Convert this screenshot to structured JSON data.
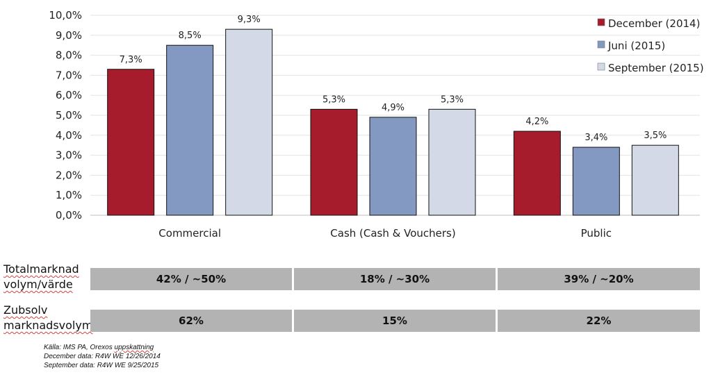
{
  "chart_data": {
    "type": "bar",
    "categories": [
      "Commercial",
      "Cash (Cash & Vouchers)",
      "Public"
    ],
    "series": [
      {
        "name": "December (2014)",
        "values": [
          7.3,
          5.3,
          4.2
        ],
        "labels": [
          "7,3%",
          "5,3%",
          "4,2%"
        ],
        "color": "#a61c2c"
      },
      {
        "name": "Juni (2015)",
        "values": [
          8.5,
          4.9,
          3.4
        ],
        "labels": [
          "8,5%",
          "4,9%",
          "3,4%"
        ],
        "color": "#8499c1"
      },
      {
        "name": "September (2015)",
        "values": [
          9.3,
          5.3,
          3.5
        ],
        "labels": [
          "9,3%",
          "5,3%",
          "3,5%"
        ],
        "color": "#d4d9e8"
      }
    ],
    "yticks": [
      "0,0%",
      "1,0%",
      "2,0%",
      "3,0%",
      "4,0%",
      "5,0%",
      "6,0%",
      "7,0%",
      "8,0%",
      "9,0%",
      "10,0%"
    ],
    "ylim": [
      0,
      10
    ],
    "legend_position": "top-right",
    "grid": true
  },
  "table": {
    "rows": [
      {
        "label_line1": "Totalmarknad",
        "label_line2": "volym/värde",
        "cells": [
          "42% / ~50%",
          "18% / ~30%",
          "39% / ~20%"
        ]
      },
      {
        "label_line1": "Zubsolv",
        "label_line2": "marknadsvolym",
        "cells": [
          "62%",
          "15%",
          "22%"
        ]
      }
    ]
  },
  "source": {
    "line1_prefix": "Källa: IMS PA, Orexos ",
    "line1_word": "uppskattning",
    "line2": "December data: R4W WE 12/26/2014",
    "line3": "September data: R4W WE 9/25/2015"
  }
}
